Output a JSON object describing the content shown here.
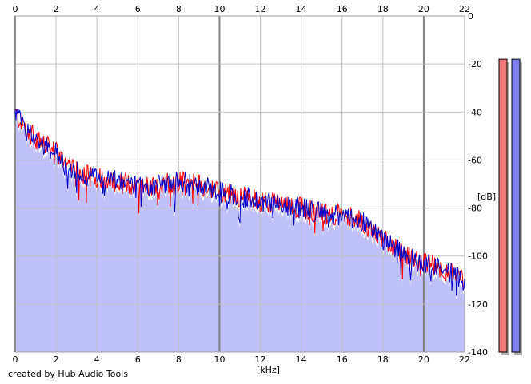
{
  "credit": "created by Hub Audio Tools",
  "chart_data": {
    "type": "line",
    "xlabel": "[kHz]",
    "ylabel": "[dB]",
    "xlim": [
      0,
      22
    ],
    "ylim": [
      -140,
      0
    ],
    "x_ticks": [
      "0",
      "2",
      "4",
      "6",
      "8",
      "10",
      "12",
      "14",
      "16",
      "18",
      "20",
      "22"
    ],
    "y_ticks": [
      "0",
      "-20",
      "-40",
      "-60",
      "-80",
      "-100",
      "-120",
      "-140"
    ],
    "grid": true,
    "x_major_lines": [
      10,
      20
    ],
    "colors": {
      "fill": "#c0c0fa",
      "left_channel": "#ff0000",
      "right_channel": "#0000c8",
      "grid": "#c0c0c0",
      "grid_major": "#808080"
    },
    "envelope": {
      "x": [
        0,
        0.5,
        1,
        1.5,
        2,
        2.5,
        3,
        4,
        5,
        6,
        7,
        8,
        9,
        10,
        11,
        12,
        13,
        14,
        15,
        16,
        16.5,
        17,
        17.5,
        18,
        18.5,
        19,
        19.5,
        20,
        20.5,
        21,
        21.5,
        22
      ],
      "y": [
        -40,
        -47,
        -51,
        -54,
        -57,
        -62,
        -65,
        -67,
        -69,
        -71,
        -70,
        -69,
        -70,
        -73,
        -75,
        -77,
        -78,
        -80,
        -82,
        -83,
        -84,
        -86,
        -89,
        -93,
        -96,
        -99,
        -101,
        -103,
        -104,
        -106,
        -108,
        -111
      ]
    },
    "levels": [
      {
        "channel": "L",
        "peak_db": -18
      },
      {
        "channel": "R",
        "peak_db": -18
      }
    ]
  }
}
